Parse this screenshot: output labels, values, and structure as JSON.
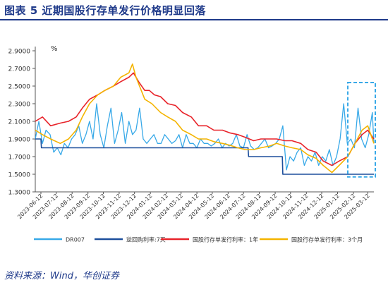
{
  "title": "图表 5   近期国股行存单发行价格明显回落",
  "source": "资料来源：Wind，华创证券",
  "chart_data": {
    "type": "line",
    "unit_label": "%",
    "ylim": [
      1.3,
      2.9
    ],
    "yticks": [
      "1.3000",
      "1.5000",
      "1.7000",
      "1.9000",
      "2.1000",
      "2.3000",
      "2.5000",
      "2.7000",
      "2.9000"
    ],
    "xticks": [
      "2023-06-12",
      "2023-07-12",
      "2023-08-12",
      "2023-09-12",
      "2023-10-12",
      "2023-11-12",
      "2023-12-12",
      "2024-01-12",
      "2024-02-12",
      "2024-03-12",
      "2024-04-12",
      "2024-05-12",
      "2024-06-12",
      "2024-07-12",
      "2024-08-12",
      "2024-09-12",
      "2024-10-12",
      "2024-11-12",
      "2024-12-12",
      "2025-01-12",
      "2025-02-12",
      "2025-03-12"
    ],
    "x_range": [
      "2023-06-01",
      "2025-03-24"
    ],
    "series": [
      {
        "name": "DR007",
        "color": "#38a9e8",
        "width": 1.3,
        "points": [
          [
            "2023-06-01",
            1.9
          ],
          [
            "2023-06-08",
            2.1
          ],
          [
            "2023-06-15",
            1.85
          ],
          [
            "2023-06-22",
            2.0
          ],
          [
            "2023-06-30",
            1.95
          ],
          [
            "2023-07-07",
            1.75
          ],
          [
            "2023-07-14",
            1.8
          ],
          [
            "2023-07-21",
            1.72
          ],
          [
            "2023-07-28",
            1.85
          ],
          [
            "2023-08-04",
            1.8
          ],
          [
            "2023-08-11",
            1.9
          ],
          [
            "2023-08-18",
            1.95
          ],
          [
            "2023-08-25",
            2.05
          ],
          [
            "2023-09-01",
            1.85
          ],
          [
            "2023-09-08",
            1.95
          ],
          [
            "2023-09-15",
            2.1
          ],
          [
            "2023-09-22",
            1.9
          ],
          [
            "2023-09-29",
            2.3
          ],
          [
            "2023-10-06",
            1.95
          ],
          [
            "2023-10-13",
            1.8
          ],
          [
            "2023-10-20",
            2.05
          ],
          [
            "2023-10-27",
            2.25
          ],
          [
            "2023-11-03",
            1.85
          ],
          [
            "2023-11-10",
            2.0
          ],
          [
            "2023-11-17",
            2.2
          ],
          [
            "2023-11-24",
            1.85
          ],
          [
            "2023-12-01",
            2.1
          ],
          [
            "2023-12-08",
            1.95
          ],
          [
            "2023-12-15",
            2.0
          ],
          [
            "2023-12-22",
            2.25
          ],
          [
            "2023-12-29",
            1.9
          ],
          [
            "2024-01-05",
            1.85
          ],
          [
            "2024-01-12",
            1.9
          ],
          [
            "2024-01-19",
            1.95
          ],
          [
            "2024-01-26",
            1.85
          ],
          [
            "2024-02-02",
            1.85
          ],
          [
            "2024-02-09",
            1.95
          ],
          [
            "2024-02-16",
            1.9
          ],
          [
            "2024-02-23",
            1.85
          ],
          [
            "2024-03-01",
            1.88
          ],
          [
            "2024-03-08",
            1.95
          ],
          [
            "2024-03-15",
            1.8
          ],
          [
            "2024-03-22",
            1.95
          ],
          [
            "2024-03-29",
            1.85
          ],
          [
            "2024-04-05",
            1.85
          ],
          [
            "2024-04-12",
            1.8
          ],
          [
            "2024-04-19",
            1.9
          ],
          [
            "2024-04-26",
            1.85
          ],
          [
            "2024-05-03",
            1.85
          ],
          [
            "2024-05-10",
            1.82
          ],
          [
            "2024-05-17",
            1.85
          ],
          [
            "2024-05-24",
            1.9
          ],
          [
            "2024-05-31",
            1.8
          ],
          [
            "2024-06-07",
            1.85
          ],
          [
            "2024-06-14",
            1.82
          ],
          [
            "2024-06-21",
            1.85
          ],
          [
            "2024-06-28",
            1.95
          ],
          [
            "2024-07-05",
            1.82
          ],
          [
            "2024-07-12",
            1.8
          ],
          [
            "2024-07-19",
            1.95
          ],
          [
            "2024-07-26",
            1.82
          ],
          [
            "2024-08-02",
            1.78
          ],
          [
            "2024-08-09",
            1.8
          ],
          [
            "2024-08-16",
            1.85
          ],
          [
            "2024-08-23",
            1.9
          ],
          [
            "2024-08-30",
            1.8
          ],
          [
            "2024-09-06",
            1.82
          ],
          [
            "2024-09-13",
            1.85
          ],
          [
            "2024-09-20",
            1.9
          ],
          [
            "2024-09-27",
            2.05
          ],
          [
            "2024-10-04",
            1.55
          ],
          [
            "2024-10-11",
            1.7
          ],
          [
            "2024-10-18",
            1.65
          ],
          [
            "2024-10-25",
            1.75
          ],
          [
            "2024-11-01",
            1.8
          ],
          [
            "2024-11-08",
            1.6
          ],
          [
            "2024-11-15",
            1.7
          ],
          [
            "2024-11-22",
            1.65
          ],
          [
            "2024-11-29",
            1.75
          ],
          [
            "2024-12-06",
            1.6
          ],
          [
            "2024-12-13",
            1.7
          ],
          [
            "2024-12-20",
            1.65
          ],
          [
            "2024-12-27",
            1.78
          ],
          [
            "2025-01-03",
            1.6
          ],
          [
            "2025-01-10",
            1.7
          ],
          [
            "2025-01-17",
            1.9
          ],
          [
            "2025-01-24",
            2.3
          ],
          [
            "2025-01-31",
            1.85
          ],
          [
            "2025-02-07",
            1.9
          ],
          [
            "2025-02-14",
            1.8
          ],
          [
            "2025-02-21",
            2.25
          ],
          [
            "2025-02-28",
            1.9
          ],
          [
            "2025-03-07",
            1.8
          ],
          [
            "2025-03-14",
            1.95
          ],
          [
            "2025-03-21",
            2.2
          ],
          [
            "2025-03-24",
            1.85
          ]
        ]
      },
      {
        "name": "逆回购利率:7天",
        "color": "#1d4f9c",
        "width": 1.6,
        "points": [
          [
            "2023-06-01",
            1.9
          ],
          [
            "2023-06-12",
            1.9
          ],
          [
            "2023-06-13",
            1.8
          ],
          [
            "2024-07-21",
            1.8
          ],
          [
            "2024-07-22",
            1.7
          ],
          [
            "2024-09-26",
            1.7
          ],
          [
            "2024-09-27",
            1.5
          ],
          [
            "2025-03-24",
            1.5
          ]
        ]
      },
      {
        "name": "国股行存单发行利率：1年",
        "color": "#e8232a",
        "width": 1.6,
        "points": [
          [
            "2023-06-01",
            2.1
          ],
          [
            "2023-06-15",
            2.15
          ],
          [
            "2023-07-01",
            2.05
          ],
          [
            "2023-07-20",
            2.08
          ],
          [
            "2023-08-05",
            2.1
          ],
          [
            "2023-08-20",
            2.15
          ],
          [
            "2023-09-01",
            2.25
          ],
          [
            "2023-09-15",
            2.35
          ],
          [
            "2023-10-01",
            2.4
          ],
          [
            "2023-10-15",
            2.45
          ],
          [
            "2023-11-01",
            2.5
          ],
          [
            "2023-11-15",
            2.55
          ],
          [
            "2023-12-01",
            2.6
          ],
          [
            "2023-12-10",
            2.65
          ],
          [
            "2023-12-20",
            2.55
          ],
          [
            "2024-01-01",
            2.45
          ],
          [
            "2024-01-10",
            2.45
          ],
          [
            "2024-01-20",
            2.4
          ],
          [
            "2024-02-01",
            2.38
          ],
          [
            "2024-02-15",
            2.3
          ],
          [
            "2024-03-01",
            2.28
          ],
          [
            "2024-03-15",
            2.2
          ],
          [
            "2024-04-01",
            2.15
          ],
          [
            "2024-04-15",
            2.05
          ],
          [
            "2024-05-01",
            2.05
          ],
          [
            "2024-05-15",
            2.0
          ],
          [
            "2024-06-01",
            2.0
          ],
          [
            "2024-06-15",
            1.97
          ],
          [
            "2024-07-01",
            1.95
          ],
          [
            "2024-07-15",
            1.92
          ],
          [
            "2024-08-01",
            1.88
          ],
          [
            "2024-08-15",
            1.9
          ],
          [
            "2024-09-01",
            1.9
          ],
          [
            "2024-09-15",
            1.9
          ],
          [
            "2024-10-01",
            1.88
          ],
          [
            "2024-10-15",
            1.88
          ],
          [
            "2024-11-01",
            1.85
          ],
          [
            "2024-11-15",
            1.78
          ],
          [
            "2024-12-01",
            1.75
          ],
          [
            "2024-12-15",
            1.65
          ],
          [
            "2025-01-01",
            1.6
          ],
          [
            "2025-01-15",
            1.65
          ],
          [
            "2025-02-01",
            1.7
          ],
          [
            "2025-02-15",
            1.85
          ],
          [
            "2025-03-01",
            1.95
          ],
          [
            "2025-03-12",
            2.0
          ],
          [
            "2025-03-24",
            1.9
          ]
        ]
      },
      {
        "name": "国股行存单发行利率：3个月",
        "color": "#f4b400",
        "width": 1.6,
        "points": [
          [
            "2023-06-01",
            2.0
          ],
          [
            "2023-06-15",
            1.95
          ],
          [
            "2023-07-01",
            1.9
          ],
          [
            "2023-07-20",
            1.85
          ],
          [
            "2023-08-05",
            1.9
          ],
          [
            "2023-08-20",
            2.0
          ],
          [
            "2023-09-01",
            2.15
          ],
          [
            "2023-09-15",
            2.3
          ],
          [
            "2023-10-01",
            2.4
          ],
          [
            "2023-10-15",
            2.45
          ],
          [
            "2023-11-01",
            2.5
          ],
          [
            "2023-11-15",
            2.6
          ],
          [
            "2023-12-01",
            2.65
          ],
          [
            "2023-12-08",
            2.75
          ],
          [
            "2023-12-15",
            2.6
          ],
          [
            "2024-01-01",
            2.35
          ],
          [
            "2024-01-15",
            2.3
          ],
          [
            "2024-02-01",
            2.2
          ],
          [
            "2024-02-15",
            2.15
          ],
          [
            "2024-03-01",
            2.1
          ],
          [
            "2024-03-15",
            2.0
          ],
          [
            "2024-04-01",
            1.95
          ],
          [
            "2024-04-15",
            1.9
          ],
          [
            "2024-05-01",
            1.9
          ],
          [
            "2024-05-15",
            1.87
          ],
          [
            "2024-06-01",
            1.85
          ],
          [
            "2024-06-15",
            1.83
          ],
          [
            "2024-07-01",
            1.8
          ],
          [
            "2024-07-15",
            1.78
          ],
          [
            "2024-08-01",
            1.78
          ],
          [
            "2024-08-15",
            1.8
          ],
          [
            "2024-09-01",
            1.82
          ],
          [
            "2024-09-15",
            1.85
          ],
          [
            "2024-10-01",
            1.82
          ],
          [
            "2024-10-15",
            1.8
          ],
          [
            "2024-11-01",
            1.78
          ],
          [
            "2024-11-15",
            1.72
          ],
          [
            "2024-12-01",
            1.68
          ],
          [
            "2024-12-15",
            1.6
          ],
          [
            "2025-01-01",
            1.52
          ],
          [
            "2025-01-15",
            1.6
          ],
          [
            "2025-02-01",
            1.7
          ],
          [
            "2025-02-15",
            1.85
          ],
          [
            "2025-03-01",
            2.0
          ],
          [
            "2025-03-12",
            2.05
          ],
          [
            "2025-03-24",
            1.85
          ]
        ]
      }
    ],
    "highlight": {
      "x_start": "2025-02-01",
      "x_end": "2025-03-24",
      "color": "#38a9e8",
      "style": "dashed"
    },
    "legend_position": "bottom"
  }
}
